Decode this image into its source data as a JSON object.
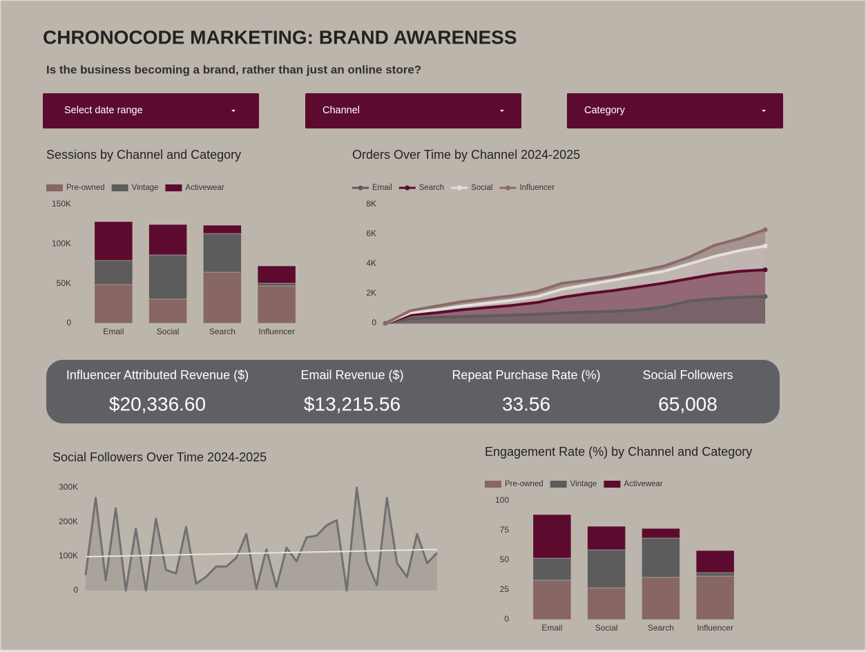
{
  "title": "CHRONOCODE MARKETING: BRAND AWARENESS",
  "subtitle": "Is the business becoming a brand, rather than just an online store?",
  "filters": [
    "Select date range",
    "Channel",
    "Category"
  ],
  "kpis": [
    {
      "label": "Influencer Attributed Revenue ($)",
      "value": "$20,336.60"
    },
    {
      "label": "Email Revenue ($)",
      "value": "$13,215.56"
    },
    {
      "label": "Repeat Purchase Rate (%)",
      "value": "33.56"
    },
    {
      "label": "Social Followers",
      "value": "65,008"
    }
  ],
  "chart_data": [
    {
      "type": "bar",
      "stacked": true,
      "title": "Sessions by Channel and Category",
      "categories": [
        "Email",
        "Social",
        "Search",
        "Influencer"
      ],
      "series": [
        {
          "name": "Pre-owned",
          "color": "#876663",
          "values": [
            48800,
            30500,
            64500,
            47100
          ]
        },
        {
          "name": "Vintage",
          "color": "#5c5c5c",
          "values": [
            30500,
            55800,
            48800,
            3500
          ]
        },
        {
          "name": "Activewear",
          "color": "#5c0b2e",
          "values": [
            49000,
            38400,
            10500,
            21800
          ]
        }
      ],
      "ylim": [
        0,
        150000
      ],
      "yticks": [
        0,
        {
          "value": 50000,
          "label": "50K"
        },
        {
          "value": 100000,
          "label": "100K"
        },
        {
          "value": 150000,
          "label": "150K"
        }
      ],
      "legend": "top"
    },
    {
      "type": "line",
      "area": true,
      "title": "Orders Over Time by Channel 2024-2025",
      "categories": [
        null,
        null,
        null,
        null,
        null,
        null,
        null,
        null,
        null,
        null,
        null,
        null,
        null,
        null,
        null,
        null
      ],
      "series": [
        {
          "name": "Email",
          "color": "#5c5c5c",
          "values": [
            0,
            300,
            400,
            450,
            500,
            550,
            600,
            700,
            750,
            800,
            900,
            1100,
            1500,
            1650,
            1750,
            1800
          ]
        },
        {
          "name": "Search",
          "color": "#5c0b2e",
          "values": [
            0,
            550,
            700,
            900,
            1050,
            1200,
            1400,
            1750,
            2000,
            2200,
            2450,
            2700,
            3000,
            3300,
            3500,
            3600
          ]
        },
        {
          "name": "Social",
          "color": "#e3e0dc",
          "values": [
            0,
            700,
            900,
            1150,
            1350,
            1550,
            1800,
            2300,
            2600,
            2900,
            3200,
            3500,
            4000,
            4500,
            4900,
            5200
          ]
        },
        {
          "name": "Influencer",
          "color": "#8a6a68",
          "values": [
            0,
            850,
            1150,
            1450,
            1650,
            1850,
            2150,
            2700,
            2900,
            3150,
            3500,
            3850,
            4450,
            5250,
            5700,
            6300
          ]
        }
      ],
      "ylim": [
        0,
        8000
      ],
      "yticks": [
        0,
        {
          "value": 2000,
          "label": "2K"
        },
        {
          "value": 4000,
          "label": "4K"
        },
        {
          "value": 6000,
          "label": "6K"
        },
        {
          "value": 8000,
          "label": "8K"
        }
      ],
      "legend": "top"
    },
    {
      "type": "line",
      "area": true,
      "trendline": true,
      "title": "Social Followers Over Time 2024-2025",
      "categories": [
        null,
        null,
        null,
        null,
        null,
        null,
        null,
        null,
        null,
        null,
        null,
        null,
        null,
        null,
        null,
        null,
        null,
        null,
        null,
        null,
        null,
        null,
        null,
        null,
        null,
        null,
        null,
        null,
        null,
        null,
        null,
        null,
        null,
        null,
        null,
        null
      ],
      "series": [
        {
          "color": "#707070",
          "values": [
            45000,
            270000,
            30000,
            240000,
            0,
            180000,
            0,
            210000,
            60000,
            50000,
            185000,
            20000,
            40000,
            70000,
            70000,
            95000,
            165000,
            5000,
            120000,
            10000,
            125000,
            85000,
            155000,
            160000,
            190000,
            205000,
            0,
            300000,
            85000,
            15000,
            270000,
            80000,
            40000,
            165000,
            80000,
            110000
          ]
        }
      ],
      "ylim": [
        0,
        300000
      ],
      "yticks": [
        0,
        {
          "value": 100000,
          "label": "100K"
        },
        {
          "value": 200000,
          "label": "200K"
        },
        {
          "value": 300000,
          "label": "300K"
        }
      ]
    },
    {
      "type": "bar",
      "stacked": true,
      "title": "Engagement Rate (%) by Channel and Category",
      "categories": [
        "Email",
        "Social",
        "Search",
        "Influencer"
      ],
      "series": [
        {
          "name": "Pre-owned",
          "color": "#876663",
          "values": [
            33.1,
            26.7,
            35.5,
            36.6
          ]
        },
        {
          "name": "Vintage",
          "color": "#5c5c5c",
          "values": [
            18.6,
            32,
            33.1,
            2.9
          ]
        },
        {
          "name": "Activewear",
          "color": "#5c0b2e",
          "values": [
            36.7,
            19.8,
            8.1,
            18.6
          ]
        }
      ],
      "ylim": [
        0,
        100
      ],
      "yticks": [
        0,
        25,
        50,
        75,
        100
      ],
      "legend": "top"
    }
  ]
}
